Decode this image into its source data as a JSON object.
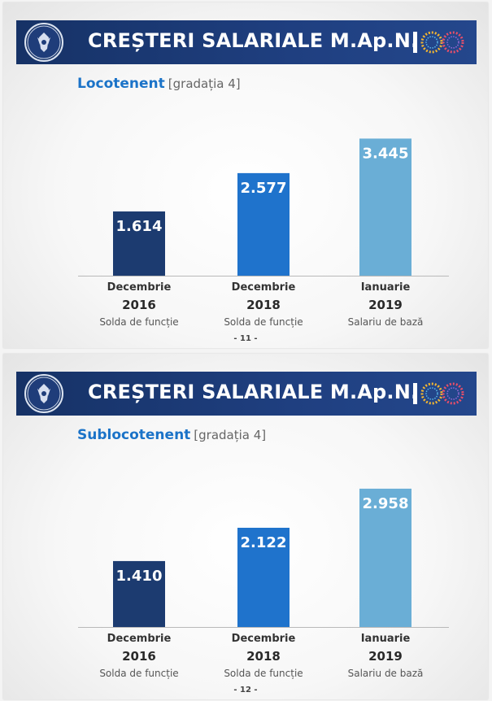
{
  "slides": [
    {
      "header": {
        "title": "CREȘTERI SALARIALE M.Ap.N.",
        "crest_icon": "romanian-government-crest-icon",
        "logo": "centenary-100-logo"
      },
      "rank": "Locotenent",
      "grade": "[gradația 4]",
      "page": "- 11 -",
      "chart_data": {
        "type": "bar",
        "title": "",
        "categories": [
          {
            "month": "Decembrie",
            "year": "2016",
            "kind": "Solda de funcție"
          },
          {
            "month": "Decembrie",
            "year": "2018",
            "kind": "Solda de funcție"
          },
          {
            "month": "Ianuarie",
            "year": "2019",
            "kind": "Salariu de bază"
          }
        ],
        "values": [
          1614,
          2577,
          3445
        ],
        "value_labels": [
          "1.614",
          "2.577",
          "3.445"
        ],
        "colors": [
          "#1c3b70",
          "#1f73cc",
          "#6aaed6"
        ],
        "ylim": [
          0,
          4700
        ],
        "grid": false,
        "legend": "none"
      }
    },
    {
      "header": {
        "title": "CREȘTERI SALARIALE M.Ap.N.",
        "crest_icon": "romanian-government-crest-icon",
        "logo": "centenary-100-logo"
      },
      "rank": "Sublocotenent",
      "grade": "[gradația 4]",
      "page": "- 12 -",
      "chart_data": {
        "type": "bar",
        "title": "",
        "categories": [
          {
            "month": "Decembrie",
            "year": "2016",
            "kind": "Solda de funcție"
          },
          {
            "month": "Decembrie",
            "year": "2018",
            "kind": "Solda de funcție"
          },
          {
            "month": "Ianuarie",
            "year": "2019",
            "kind": "Salariu de bază"
          }
        ],
        "values": [
          1410,
          2122,
          2958
        ],
        "value_labels": [
          "1.410",
          "2.122",
          "2.958"
        ],
        "colors": [
          "#1c3b70",
          "#1f73cc",
          "#6aaed6"
        ],
        "ylim": [
          0,
          4000
        ],
        "grid": false,
        "legend": "none"
      }
    }
  ]
}
